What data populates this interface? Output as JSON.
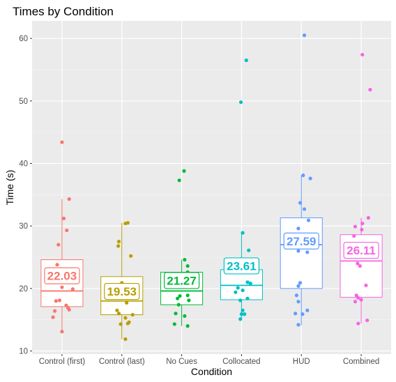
{
  "chart_data": {
    "type": "boxplot",
    "title": "Times by Condition",
    "xlabel": "Condition",
    "ylabel": "Time (s)",
    "ylim": [
      9.5,
      62.8
    ],
    "yticks": [
      10,
      20,
      30,
      40,
      50,
      60
    ],
    "grid": true,
    "categories": [
      "Control (first)",
      "Control (last)",
      "No Cues",
      "Collocated",
      "HUD",
      "Combined"
    ],
    "colors": [
      "#F8766D",
      "#B79F00",
      "#00BA38",
      "#00BFC4",
      "#619CFF",
      "#F564E3"
    ],
    "boxes": [
      {
        "whisker_low": 13.1,
        "q1": 17.1,
        "median": 19.6,
        "q3": 24.6,
        "whisker_high": 34.3
      },
      {
        "whisker_low": 11.9,
        "q1": 15.8,
        "median": 18.0,
        "q3": 21.9,
        "whisker_high": 30.5
      },
      {
        "whisker_low": 14.0,
        "q1": 17.4,
        "median": 19.6,
        "q3": 22.6,
        "whisker_high": 24.6
      },
      {
        "whisker_low": 15.1,
        "q1": 18.2,
        "median": 20.5,
        "q3": 23.0,
        "whisker_high": 28.9
      },
      {
        "whisker_low": 14.1,
        "q1": 20.0,
        "median": 27.0,
        "q3": 31.3,
        "whisker_high": 38.1
      },
      {
        "whisker_low": 14.4,
        "q1": 18.6,
        "median": 24.4,
        "q3": 28.6,
        "whisker_high": 31.3
      }
    ],
    "means": [
      "22.03",
      "19.53",
      "21.27",
      "23.61",
      "27.59",
      "26.11"
    ],
    "points": [
      [
        {
          "x": 0.0,
          "y": 43.4
        },
        {
          "x": 0.12,
          "y": 34.3
        },
        {
          "x": 0.03,
          "y": 31.2
        },
        {
          "x": 0.08,
          "y": 29.3
        },
        {
          "x": -0.06,
          "y": 27.0
        },
        {
          "x": -0.08,
          "y": 23.8
        },
        {
          "x": 0.05,
          "y": 22.6
        },
        {
          "x": -0.15,
          "y": 21.7
        },
        {
          "x": 0.0,
          "y": 20.2
        },
        {
          "x": 0.18,
          "y": 19.9
        },
        {
          "x": -0.04,
          "y": 18.1
        },
        {
          "x": -0.1,
          "y": 18.0
        },
        {
          "x": 0.07,
          "y": 17.3
        },
        {
          "x": 0.1,
          "y": 16.9
        },
        {
          "x": 0.12,
          "y": 16.6
        },
        {
          "x": -0.12,
          "y": 16.4
        },
        {
          "x": -0.15,
          "y": 15.4
        },
        {
          "x": 0.0,
          "y": 13.1
        }
      ],
      [
        {
          "x": 0.1,
          "y": 30.5
        },
        {
          "x": 0.06,
          "y": 30.4
        },
        {
          "x": -0.05,
          "y": 27.5
        },
        {
          "x": -0.06,
          "y": 26.8
        },
        {
          "x": 0.15,
          "y": 25.2
        },
        {
          "x": 0.0,
          "y": 20.9
        },
        {
          "x": 0.02,
          "y": 19.7
        },
        {
          "x": 0.12,
          "y": 19.0
        },
        {
          "x": -0.1,
          "y": 18.5
        },
        {
          "x": 0.08,
          "y": 17.7
        },
        {
          "x": -0.08,
          "y": 16.5
        },
        {
          "x": -0.05,
          "y": 16.0
        },
        {
          "x": 0.18,
          "y": 15.8
        },
        {
          "x": 0.06,
          "y": 15.3
        },
        {
          "x": 0.12,
          "y": 14.6
        },
        {
          "x": -0.02,
          "y": 14.3
        },
        {
          "x": 0.1,
          "y": 14.4
        },
        {
          "x": 0.06,
          "y": 11.9
        }
      ],
      [
        {
          "x": 0.04,
          "y": 38.8
        },
        {
          "x": -0.04,
          "y": 37.3
        },
        {
          "x": 0.05,
          "y": 24.6
        },
        {
          "x": 0.1,
          "y": 23.6
        },
        {
          "x": 0.1,
          "y": 22.6
        },
        {
          "x": -0.1,
          "y": 20.9
        },
        {
          "x": 0.02,
          "y": 20.2
        },
        {
          "x": -0.07,
          "y": 18.4
        },
        {
          "x": 0.1,
          "y": 18.9
        },
        {
          "x": 0.12,
          "y": 18.1
        },
        {
          "x": -0.05,
          "y": 17.4
        },
        {
          "x": -0.1,
          "y": 16.0
        },
        {
          "x": 0.05,
          "y": 15.6
        },
        {
          "x": -0.12,
          "y": 14.3
        },
        {
          "x": 0.1,
          "y": 14.0
        },
        {
          "x": -0.03,
          "y": 18.8
        }
      ],
      [
        {
          "x": 0.08,
          "y": 56.5
        },
        {
          "x": -0.01,
          "y": 49.8
        },
        {
          "x": 0.02,
          "y": 28.9
        },
        {
          "x": 0.12,
          "y": 26.1
        },
        {
          "x": 0.05,
          "y": 23.3
        },
        {
          "x": -0.08,
          "y": 22.6
        },
        {
          "x": 0.1,
          "y": 21.0
        },
        {
          "x": 0.15,
          "y": 20.8
        },
        {
          "x": -0.06,
          "y": 20.1
        },
        {
          "x": 0.02,
          "y": 19.7
        },
        {
          "x": -0.1,
          "y": 19.4
        },
        {
          "x": 0.1,
          "y": 18.4
        },
        {
          "x": -0.02,
          "y": 18.1
        },
        {
          "x": 0.02,
          "y": 16.5
        },
        {
          "x": 0.0,
          "y": 15.9
        },
        {
          "x": 0.05,
          "y": 15.9
        },
        {
          "x": -0.02,
          "y": 15.1
        }
      ],
      [
        {
          "x": 0.05,
          "y": 60.5
        },
        {
          "x": 0.03,
          "y": 38.1
        },
        {
          "x": 0.15,
          "y": 37.6
        },
        {
          "x": -0.02,
          "y": 33.7
        },
        {
          "x": 0.05,
          "y": 32.7
        },
        {
          "x": 0.12,
          "y": 30.9
        },
        {
          "x": -0.05,
          "y": 29.6
        },
        {
          "x": 0.1,
          "y": 28.3
        },
        {
          "x": 0.0,
          "y": 27.0
        },
        {
          "x": -0.05,
          "y": 26.0
        },
        {
          "x": 0.1,
          "y": 25.8
        },
        {
          "x": -0.02,
          "y": 20.9
        },
        {
          "x": -0.05,
          "y": 20.4
        },
        {
          "x": -0.08,
          "y": 18.9
        },
        {
          "x": -0.05,
          "y": 17.9
        },
        {
          "x": 0.1,
          "y": 16.5
        },
        {
          "x": -0.1,
          "y": 16.0
        },
        {
          "x": 0.02,
          "y": 15.9
        },
        {
          "x": -0.05,
          "y": 14.2
        }
      ],
      [
        {
          "x": 0.02,
          "y": 57.4
        },
        {
          "x": 0.15,
          "y": 51.8
        },
        {
          "x": 0.12,
          "y": 31.3
        },
        {
          "x": 0.02,
          "y": 30.4
        },
        {
          "x": -0.1,
          "y": 29.9
        },
        {
          "x": 0.01,
          "y": 29.4
        },
        {
          "x": -0.12,
          "y": 28.4
        },
        {
          "x": 0.0,
          "y": 27.1
        },
        {
          "x": 0.05,
          "y": 26.0
        },
        {
          "x": -0.06,
          "y": 24.0
        },
        {
          "x": -0.02,
          "y": 23.6
        },
        {
          "x": 0.08,
          "y": 20.5
        },
        {
          "x": -0.08,
          "y": 18.9
        },
        {
          "x": -0.05,
          "y": 18.5
        },
        {
          "x": 0.0,
          "y": 18.2
        },
        {
          "x": -0.1,
          "y": 17.9
        },
        {
          "x": 0.1,
          "y": 14.9
        },
        {
          "x": -0.05,
          "y": 14.4
        }
      ]
    ]
  }
}
